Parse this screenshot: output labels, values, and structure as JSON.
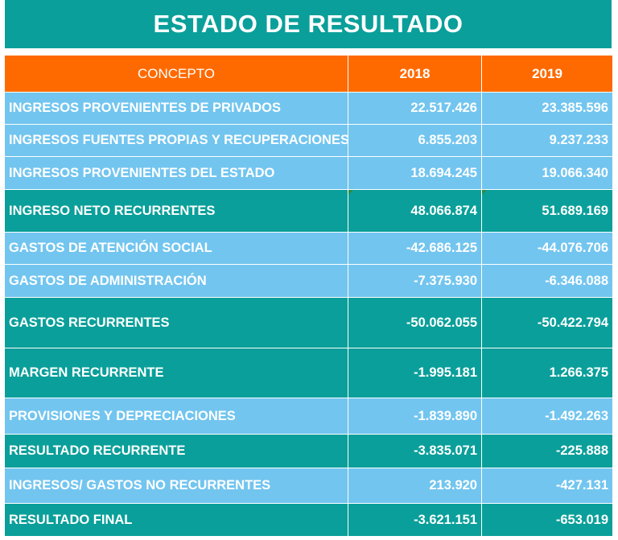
{
  "title": "ESTADO DE RESULTADO",
  "header": {
    "concept": "CONCEPTO",
    "year1": "2018",
    "year2": "2019"
  },
  "rows": [
    {
      "label": "INGRESOS PROVENIENTES DE PRIVADOS",
      "y2018": "22.517.426",
      "y2019": "23.385.596"
    },
    {
      "label": "INGRESOS FUENTES PROPIAS Y RECUPERACIONES",
      "y2018": "6.855.203",
      "y2019": "9.237.233"
    },
    {
      "label": "INGRESOS PROVENIENTES DEL ESTADO",
      "y2018": "18.694.245",
      "y2019": "19.066.340"
    },
    {
      "label": "INGRESO NETO RECURRENTES",
      "y2018": "48.066.874",
      "y2019": "51.689.169"
    },
    {
      "label": "GASTOS DE ATENCIÓN SOCIAL",
      "y2018": "-42.686.125",
      "y2019": "-44.076.706"
    },
    {
      "label": "GASTOS DE ADMINISTRACIÓN",
      "y2018": "-7.375.930",
      "y2019": "-6.346.088"
    },
    {
      "label": "GASTOS RECURRENTES",
      "y2018": "-50.062.055",
      "y2019": "-50.422.794"
    },
    {
      "label": "MARGEN RECURRENTE",
      "y2018": "-1.995.181",
      "y2019": "1.266.375"
    },
    {
      "label": "PROVISIONES Y DEPRECIACIONES",
      "y2018": "-1.839.890",
      "y2019": "-1.492.263"
    },
    {
      "label": "RESULTADO RECURRENTE",
      "y2018": "-3.835.071",
      "y2019": "-225.888"
    },
    {
      "label": "INGRESOS/ GASTOS NO RECURRENTES",
      "y2018": "213.920",
      "y2019": "-427.131"
    },
    {
      "label": "RESULTADO FINAL",
      "y2018": "-3.621.151",
      "y2019": "-653.019"
    }
  ],
  "colors": {
    "teal": "#0a9f9a",
    "orange": "#ff6a00",
    "light_blue": "#72c5ef"
  }
}
